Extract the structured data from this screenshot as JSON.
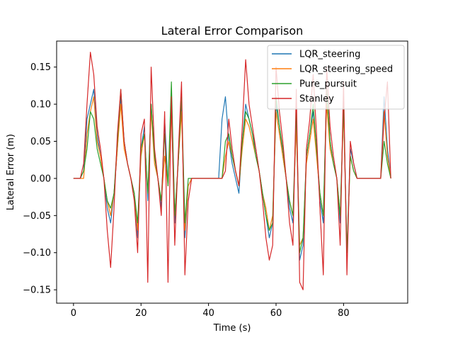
{
  "chart_data": {
    "type": "line",
    "title": "Lateral Error Comparison",
    "xlabel": "Time (s)",
    "ylabel": "Lateral Error (m)",
    "xlim": [
      -5,
      99
    ],
    "ylim": [
      -0.168,
      0.185
    ],
    "xticks": [
      0,
      20,
      40,
      60,
      80
    ],
    "yticks": [
      -0.15,
      -0.1,
      -0.05,
      0.0,
      0.05,
      0.1,
      0.15
    ],
    "ytick_labels": [
      "−0.15",
      "−0.10",
      "−0.05",
      "0.00",
      "0.05",
      "0.10",
      "0.15"
    ],
    "grid": false,
    "legend_position": "upper right",
    "colors": {
      "LQR_steering": "#1f77b4",
      "LQR_steering_speed": "#ff7f0e",
      "Pure_pursuit": "#2ca02c",
      "Stanley": "#d62728"
    },
    "time": [
      0,
      1,
      2,
      3,
      4,
      5,
      6,
      7,
      8,
      9,
      10,
      11,
      12,
      13,
      14,
      15,
      16,
      17,
      18,
      19,
      20,
      21,
      22,
      23,
      24,
      25,
      26,
      27,
      28,
      29,
      30,
      31,
      32,
      33,
      34,
      35,
      36,
      37,
      38,
      39,
      40,
      41,
      42,
      43,
      44,
      45,
      46,
      47,
      48,
      49,
      50,
      51,
      52,
      53,
      54,
      55,
      56,
      57,
      58,
      59,
      60,
      61,
      62,
      63,
      64,
      65,
      66,
      67,
      68,
      69,
      70,
      71,
      72,
      73,
      74,
      75,
      76,
      77,
      78,
      79,
      80,
      81,
      82,
      83,
      84,
      85,
      86,
      87,
      88,
      89,
      90,
      91,
      92,
      93,
      94
    ],
    "series": [
      {
        "name": "LQR_steering",
        "values": [
          0.0,
          0.0,
          0.0,
          0.01,
          0.08,
          0.1,
          0.12,
          0.06,
          0.03,
          0.0,
          -0.04,
          -0.06,
          -0.02,
          0.04,
          0.11,
          0.05,
          0.02,
          0.0,
          -0.02,
          -0.08,
          0.04,
          0.07,
          -0.03,
          0.1,
          0.03,
          0.0,
          -0.04,
          0.08,
          -0.01,
          0.1,
          -0.06,
          0.02,
          0.1,
          -0.08,
          -0.01,
          0.0,
          0.0,
          0.0,
          0.0,
          0.0,
          0.0,
          0.0,
          0.0,
          0.0,
          0.08,
          0.11,
          0.05,
          0.02,
          0.0,
          -0.02,
          0.05,
          0.1,
          0.08,
          0.06,
          0.04,
          0.01,
          -0.02,
          -0.05,
          -0.08,
          -0.06,
          0.1,
          0.07,
          0.03,
          0.0,
          -0.04,
          -0.06,
          0.08,
          -0.11,
          -0.09,
          0.03,
          0.06,
          0.09,
          0.04,
          -0.03,
          -0.06,
          0.12,
          0.05,
          0.02,
          0.0,
          -0.06,
          0.1,
          -0.1,
          0.04,
          0.02,
          0.0,
          0.0,
          0.0,
          0.0,
          0.0,
          0.0,
          0.0,
          0.0,
          0.11,
          0.04,
          0.0
        ]
      },
      {
        "name": "LQR_steering_speed",
        "values": [
          0.0,
          0.0,
          0.0,
          0.0,
          0.06,
          0.09,
          0.11,
          0.05,
          0.03,
          0.0,
          -0.03,
          -0.05,
          -0.02,
          0.04,
          0.1,
          0.04,
          0.02,
          0.0,
          -0.02,
          -0.07,
          0.03,
          0.06,
          -0.02,
          0.09,
          0.02,
          0.0,
          -0.03,
          0.03,
          -0.01,
          0.09,
          -0.05,
          0.02,
          0.09,
          -0.07,
          -0.01,
          0.0,
          0.0,
          0.0,
          0.0,
          0.0,
          0.0,
          0.0,
          0.0,
          0.0,
          0.0,
          0.03,
          0.05,
          0.03,
          0.01,
          -0.01,
          0.04,
          0.08,
          0.07,
          0.05,
          0.03,
          0.01,
          -0.02,
          -0.04,
          -0.07,
          -0.05,
          0.09,
          0.06,
          0.03,
          0.0,
          -0.03,
          -0.05,
          0.07,
          -0.09,
          -0.08,
          0.02,
          0.05,
          0.08,
          0.03,
          -0.02,
          -0.05,
          0.1,
          0.04,
          0.02,
          0.0,
          -0.05,
          0.09,
          -0.1,
          0.03,
          0.01,
          0.0,
          0.0,
          0.0,
          0.0,
          0.0,
          0.0,
          0.0,
          0.0,
          0.09,
          0.03,
          0.0
        ]
      },
      {
        "name": "Pure_pursuit",
        "values": [
          0.0,
          0.0,
          0.0,
          0.01,
          0.04,
          0.09,
          0.08,
          0.04,
          0.02,
          0.0,
          -0.03,
          -0.04,
          -0.02,
          0.05,
          0.12,
          0.05,
          0.02,
          0.0,
          -0.02,
          -0.06,
          0.04,
          0.06,
          -0.02,
          0.1,
          0.03,
          0.0,
          -0.03,
          0.06,
          -0.01,
          0.13,
          -0.05,
          0.02,
          0.11,
          -0.06,
          0.0,
          0.0,
          0.0,
          0.0,
          0.0,
          0.0,
          0.0,
          0.0,
          0.0,
          0.0,
          0.0,
          0.05,
          0.06,
          0.03,
          0.01,
          -0.01,
          0.05,
          0.09,
          0.08,
          0.06,
          0.03,
          0.01,
          -0.02,
          -0.05,
          -0.07,
          -0.06,
          0.11,
          0.07,
          0.04,
          0.0,
          -0.03,
          -0.05,
          0.09,
          -0.1,
          -0.08,
          0.03,
          0.06,
          0.1,
          0.04,
          -0.02,
          -0.05,
          0.12,
          0.05,
          0.02,
          0.0,
          -0.05,
          0.1,
          -0.1,
          0.03,
          0.01,
          0.0,
          0.0,
          0.0,
          0.0,
          0.0,
          0.0,
          0.0,
          0.0,
          0.05,
          0.02,
          0.0
        ]
      },
      {
        "name": "Stanley",
        "values": [
          0.0,
          0.0,
          0.0,
          0.02,
          0.1,
          0.17,
          0.14,
          0.07,
          0.04,
          0.0,
          -0.07,
          -0.12,
          -0.04,
          0.06,
          0.12,
          0.05,
          0.02,
          0.0,
          -0.03,
          -0.1,
          0.06,
          0.08,
          -0.14,
          0.15,
          0.04,
          0.0,
          -0.05,
          0.09,
          -0.14,
          0.11,
          -0.09,
          0.03,
          0.13,
          -0.13,
          -0.03,
          0.0,
          0.0,
          0.0,
          0.0,
          0.0,
          0.0,
          0.0,
          0.0,
          0.0,
          0.0,
          0.01,
          0.08,
          0.04,
          0.01,
          -0.01,
          0.07,
          0.16,
          0.1,
          0.07,
          0.04,
          0.01,
          -0.03,
          -0.08,
          -0.11,
          -0.09,
          0.15,
          0.09,
          0.05,
          0.0,
          -0.06,
          -0.09,
          0.12,
          -0.14,
          -0.15,
          0.04,
          0.08,
          0.14,
          0.06,
          -0.04,
          -0.13,
          0.15,
          0.07,
          0.03,
          0.0,
          -0.09,
          0.13,
          -0.13,
          0.05,
          0.02,
          0.0,
          0.0,
          0.0,
          0.0,
          0.0,
          0.0,
          0.0,
          0.0,
          0.08,
          0.13,
          0.0
        ]
      }
    ]
  }
}
